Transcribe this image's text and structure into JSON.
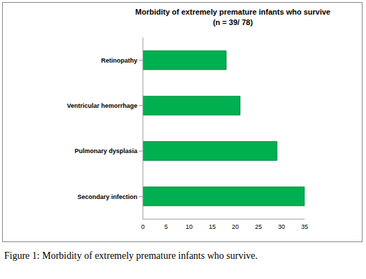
{
  "chart_data": {
    "type": "bar",
    "orientation": "horizontal",
    "title": "Morbidity of extremely premature infants  who survive",
    "subtitle": "(n = 39/ 78)",
    "caption": "Figure 1: Morbidity of extremely premature infants who survive.",
    "categories": [
      "Retinopathy",
      "Ventricular hemorrhage",
      "Pulmonary dysplasia",
      "Secondary infection"
    ],
    "values": [
      18,
      21,
      29,
      35
    ],
    "color": "#00b050",
    "xlim": [
      0,
      35
    ],
    "xticks": [
      0,
      5,
      10,
      15,
      20,
      25,
      30,
      35
    ],
    "grid": false
  }
}
